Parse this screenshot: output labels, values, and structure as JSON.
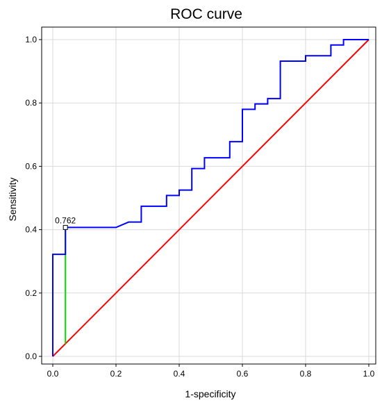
{
  "chart_data": {
    "type": "line",
    "title": "ROC curve",
    "xlabel": "1-specificity",
    "ylabel": "Sensitivity",
    "xlim": [
      0,
      1
    ],
    "ylim": [
      0,
      1
    ],
    "xticks": [
      "0.0",
      "0.2",
      "0.4",
      "0.6",
      "0.8",
      "1.0"
    ],
    "yticks": [
      "0.0",
      "0.2",
      "0.4",
      "0.6",
      "0.8",
      "1.0"
    ],
    "grid": true,
    "series": [
      {
        "color": "#0000ff",
        "x": [
          0,
          0,
          0.04,
          0.04,
          0.2,
          0.24,
          0.28,
          0.28,
          0.36,
          0.36,
          0.4,
          0.4,
          0.44,
          0.44,
          0.48,
          0.48,
          0.56,
          0.56,
          0.6,
          0.6,
          0.64,
          0.64,
          0.68,
          0.68,
          0.72,
          0.72,
          0.8,
          0.8,
          0.88,
          0.88,
          0.92,
          0.92,
          1.0
        ],
        "y": [
          0,
          0.322,
          0.322,
          0.407,
          0.407,
          0.424,
          0.424,
          0.474,
          0.474,
          0.508,
          0.508,
          0.525,
          0.525,
          0.593,
          0.593,
          0.627,
          0.627,
          0.678,
          0.678,
          0.78,
          0.78,
          0.797,
          0.797,
          0.814,
          0.814,
          0.932,
          0.932,
          0.949,
          0.949,
          0.983,
          0.983,
          1.0,
          1.0
        ]
      },
      {
        "color": "#ff0000",
        "x": [
          0,
          1
        ],
        "y": [
          0,
          1
        ]
      }
    ],
    "youden": {
      "color": "#00dd00",
      "x": 0.04,
      "y_low": 0.04,
      "y_high": 0.407,
      "label": "0.762"
    }
  }
}
